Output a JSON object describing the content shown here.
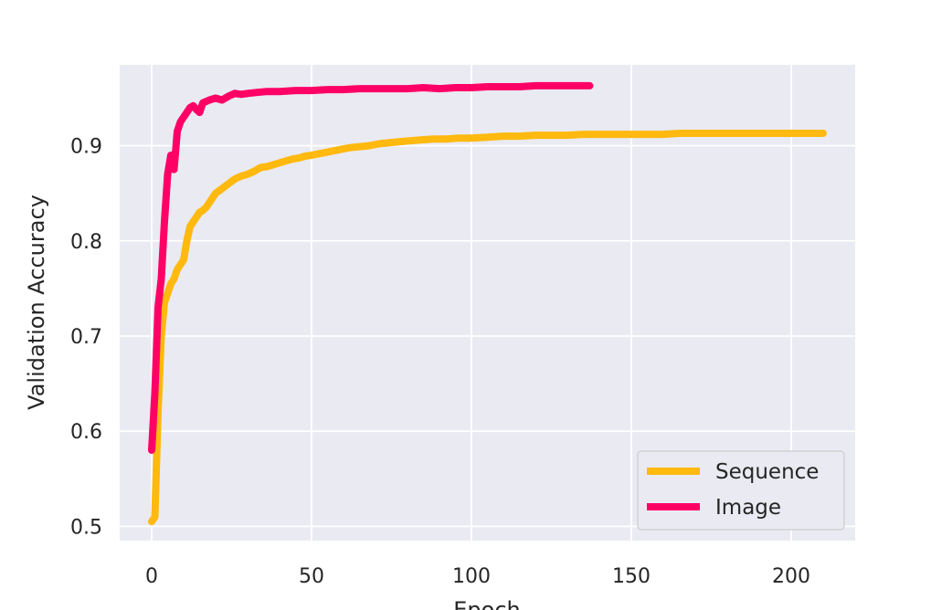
{
  "chart_data": {
    "type": "line",
    "xlabel": "Epoch",
    "ylabel": "Validation Accuracy",
    "xlim": [
      -10,
      220
    ],
    "ylim": [
      0.485,
      0.985
    ],
    "xticks": [
      0,
      50,
      100,
      150,
      200
    ],
    "yticks": [
      0.5,
      0.6,
      0.7,
      0.8,
      0.9
    ],
    "xtick_labels": [
      "0",
      "50",
      "100",
      "150",
      "200"
    ],
    "ytick_labels": [
      "0.5",
      "0.6",
      "0.7",
      "0.8",
      "0.9"
    ],
    "grid": true,
    "legend_position": "lower-right",
    "background_color": "#eaeaf2",
    "series": [
      {
        "name": "Sequence",
        "color": "#ffb90f",
        "x": [
          0,
          1,
          2,
          3,
          4,
          5,
          6,
          7,
          8,
          9,
          10,
          11,
          12,
          13,
          14,
          15,
          16,
          17,
          18,
          19,
          20,
          22,
          24,
          26,
          28,
          30,
          32,
          34,
          36,
          38,
          40,
          42,
          44,
          46,
          48,
          50,
          53,
          56,
          59,
          62,
          65,
          68,
          71,
          74,
          77,
          80,
          84,
          88,
          92,
          96,
          100,
          105,
          110,
          115,
          120,
          125,
          130,
          135,
          140,
          145,
          150,
          155,
          160,
          165,
          170,
          175,
          180,
          185,
          190,
          195,
          200,
          205,
          210
        ],
        "y": [
          0.505,
          0.51,
          0.62,
          0.7,
          0.735,
          0.745,
          0.755,
          0.76,
          0.77,
          0.775,
          0.78,
          0.8,
          0.815,
          0.82,
          0.825,
          0.83,
          0.832,
          0.835,
          0.84,
          0.845,
          0.85,
          0.855,
          0.86,
          0.865,
          0.868,
          0.87,
          0.873,
          0.877,
          0.878,
          0.88,
          0.882,
          0.884,
          0.886,
          0.887,
          0.889,
          0.89,
          0.892,
          0.894,
          0.896,
          0.898,
          0.899,
          0.9,
          0.902,
          0.903,
          0.904,
          0.905,
          0.906,
          0.907,
          0.907,
          0.908,
          0.908,
          0.909,
          0.91,
          0.91,
          0.911,
          0.911,
          0.911,
          0.912,
          0.912,
          0.912,
          0.912,
          0.912,
          0.912,
          0.913,
          0.913,
          0.913,
          0.913,
          0.913,
          0.913,
          0.913,
          0.913,
          0.913,
          0.913
        ]
      },
      {
        "name": "Image",
        "color": "#ff0066",
        "x": [
          0,
          1,
          2,
          3,
          4,
          5,
          6,
          7,
          8,
          9,
          10,
          11,
          12,
          13,
          14,
          15,
          16,
          18,
          20,
          22,
          24,
          26,
          28,
          30,
          33,
          36,
          40,
          45,
          50,
          55,
          60,
          65,
          70,
          75,
          80,
          85,
          90,
          95,
          100,
          105,
          110,
          115,
          120,
          125,
          130,
          137
        ],
        "y": [
          0.58,
          0.64,
          0.73,
          0.76,
          0.82,
          0.87,
          0.89,
          0.875,
          0.915,
          0.925,
          0.93,
          0.935,
          0.94,
          0.942,
          0.938,
          0.935,
          0.945,
          0.948,
          0.95,
          0.948,
          0.952,
          0.955,
          0.954,
          0.955,
          0.956,
          0.957,
          0.957,
          0.958,
          0.958,
          0.959,
          0.959,
          0.96,
          0.96,
          0.96,
          0.96,
          0.961,
          0.96,
          0.961,
          0.961,
          0.962,
          0.962,
          0.962,
          0.963,
          0.963,
          0.963,
          0.963
        ]
      }
    ]
  }
}
